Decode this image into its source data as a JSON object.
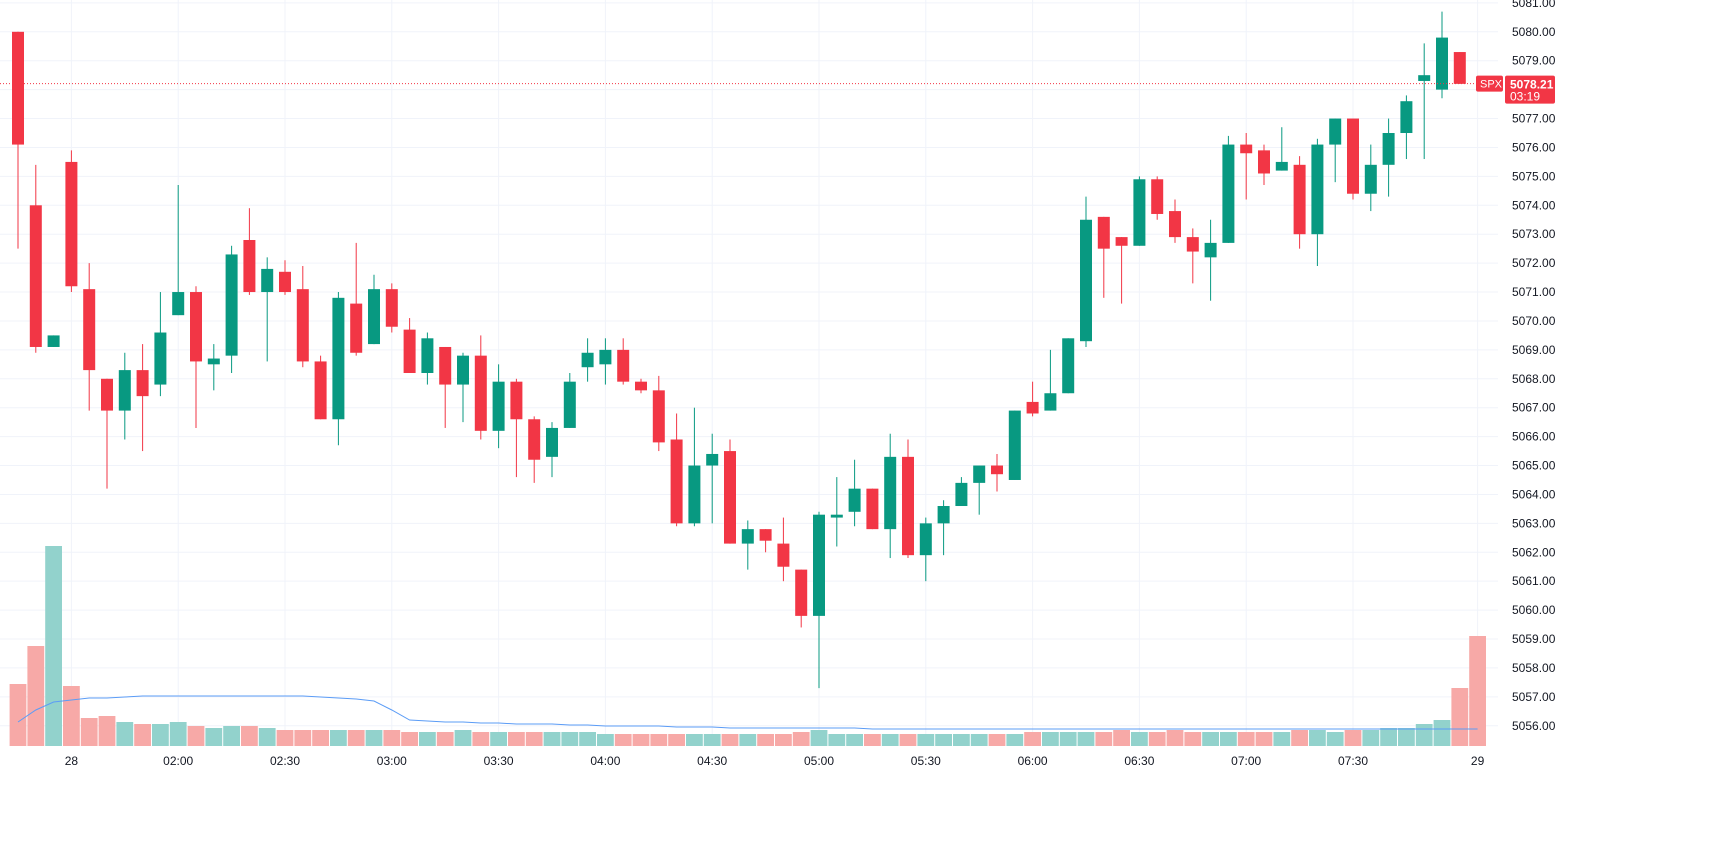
{
  "chart_data": {
    "type": "candlestick",
    "symbol": "SPX",
    "last_price": "5078.21",
    "countdown": "03:19",
    "y_range": [
      5055.3,
      5081.1
    ],
    "y_ticks": [
      "5081.00",
      "5080.00",
      "5079.00",
      "5078.00",
      "5077.00",
      "5076.00",
      "5075.00",
      "5074.00",
      "5073.00",
      "5072.00",
      "5071.00",
      "5070.00",
      "5069.00",
      "5068.00",
      "5067.00",
      "5066.00",
      "5065.00",
      "5064.00",
      "5063.00",
      "5062.00",
      "5061.00",
      "5060.00",
      "5059.00",
      "5058.00",
      "5057.00",
      "5056.00"
    ],
    "x_ticks": [
      {
        "label": "28",
        "bar": 3
      },
      {
        "label": "02:00",
        "bar": 9
      },
      {
        "label": "02:30",
        "bar": 15
      },
      {
        "label": "03:00",
        "bar": 21
      },
      {
        "label": "03:30",
        "bar": 27
      },
      {
        "label": "04:00",
        "bar": 33
      },
      {
        "label": "04:30",
        "bar": 39
      },
      {
        "label": "05:00",
        "bar": 45
      },
      {
        "label": "05:30",
        "bar": 51
      },
      {
        "label": "06:00",
        "bar": 57
      },
      {
        "label": "06:30",
        "bar": 63
      },
      {
        "label": "07:00",
        "bar": 69
      },
      {
        "label": "07:30",
        "bar": 75
      },
      {
        "label": "29",
        "bar": 82
      }
    ],
    "candles": [
      {
        "o": 5080.0,
        "h": 5080.0,
        "l": 5072.5,
        "c": 5076.1
      },
      {
        "o": 5074.0,
        "h": 5075.4,
        "l": 5068.9,
        "c": 5069.1
      },
      {
        "o": 5069.1,
        "h": 5069.5,
        "l": 5069.1,
        "c": 5069.5
      },
      {
        "o": 5075.5,
        "h": 5075.9,
        "l": 5071.0,
        "c": 5071.2
      },
      {
        "o": 5071.1,
        "h": 5072.0,
        "l": 5066.9,
        "c": 5068.3
      },
      {
        "o": 5068.0,
        "h": 5068.0,
        "l": 5064.2,
        "c": 5066.9
      },
      {
        "o": 5066.9,
        "h": 5068.9,
        "l": 5065.9,
        "c": 5068.3
      },
      {
        "o": 5068.3,
        "h": 5069.2,
        "l": 5065.5,
        "c": 5067.4
      },
      {
        "o": 5067.8,
        "h": 5071.0,
        "l": 5067.4,
        "c": 5069.6
      },
      {
        "o": 5070.2,
        "h": 5074.7,
        "l": 5070.2,
        "c": 5071.0
      },
      {
        "o": 5071.0,
        "h": 5071.2,
        "l": 5066.3,
        "c": 5068.6
      },
      {
        "o": 5068.5,
        "h": 5069.2,
        "l": 5067.6,
        "c": 5068.7
      },
      {
        "o": 5068.8,
        "h": 5072.6,
        "l": 5068.2,
        "c": 5072.3
      },
      {
        "o": 5072.8,
        "h": 5073.9,
        "l": 5070.9,
        "c": 5071.0
      },
      {
        "o": 5071.0,
        "h": 5072.2,
        "l": 5068.6,
        "c": 5071.8
      },
      {
        "o": 5071.7,
        "h": 5072.1,
        "l": 5070.9,
        "c": 5071.0
      },
      {
        "o": 5071.1,
        "h": 5071.9,
        "l": 5068.4,
        "c": 5068.6
      },
      {
        "o": 5068.6,
        "h": 5068.8,
        "l": 5066.6,
        "c": 5066.6
      },
      {
        "o": 5066.6,
        "h": 5071.0,
        "l": 5065.7,
        "c": 5070.8
      },
      {
        "o": 5070.6,
        "h": 5072.7,
        "l": 5068.8,
        "c": 5068.9
      },
      {
        "o": 5069.2,
        "h": 5071.6,
        "l": 5069.2,
        "c": 5071.1
      },
      {
        "o": 5071.1,
        "h": 5071.3,
        "l": 5069.6,
        "c": 5069.8
      },
      {
        "o": 5069.7,
        "h": 5070.1,
        "l": 5068.2,
        "c": 5068.2
      },
      {
        "o": 5068.2,
        "h": 5069.6,
        "l": 5067.8,
        "c": 5069.4
      },
      {
        "o": 5069.1,
        "h": 5069.1,
        "l": 5066.3,
        "c": 5067.8
      },
      {
        "o": 5067.8,
        "h": 5068.9,
        "l": 5066.5,
        "c": 5068.8
      },
      {
        "o": 5068.8,
        "h": 5069.5,
        "l": 5065.9,
        "c": 5066.2
      },
      {
        "o": 5066.2,
        "h": 5068.5,
        "l": 5065.6,
        "c": 5067.9
      },
      {
        "o": 5067.9,
        "h": 5068.0,
        "l": 5064.6,
        "c": 5066.6
      },
      {
        "o": 5066.6,
        "h": 5066.7,
        "l": 5064.4,
        "c": 5065.2
      },
      {
        "o": 5065.3,
        "h": 5066.5,
        "l": 5064.6,
        "c": 5066.3
      },
      {
        "o": 5066.3,
        "h": 5068.2,
        "l": 5066.3,
        "c": 5067.9
      },
      {
        "o": 5068.4,
        "h": 5069.4,
        "l": 5067.9,
        "c": 5068.9
      },
      {
        "o": 5068.5,
        "h": 5069.4,
        "l": 5067.8,
        "c": 5069.0
      },
      {
        "o": 5069.0,
        "h": 5069.4,
        "l": 5067.8,
        "c": 5067.9
      },
      {
        "o": 5067.9,
        "h": 5068.0,
        "l": 5067.5,
        "c": 5067.6
      },
      {
        "o": 5067.6,
        "h": 5068.1,
        "l": 5065.5,
        "c": 5065.8
      },
      {
        "o": 5065.9,
        "h": 5066.8,
        "l": 5062.9,
        "c": 5063.0
      },
      {
        "o": 5063.0,
        "h": 5067.0,
        "l": 5062.9,
        "c": 5065.0
      },
      {
        "o": 5065.0,
        "h": 5066.1,
        "l": 5063.0,
        "c": 5065.4
      },
      {
        "o": 5065.5,
        "h": 5065.9,
        "l": 5062.3,
        "c": 5062.3
      },
      {
        "o": 5062.3,
        "h": 5063.1,
        "l": 5061.4,
        "c": 5062.8
      },
      {
        "o": 5062.8,
        "h": 5062.8,
        "l": 5062.0,
        "c": 5062.4
      },
      {
        "o": 5062.3,
        "h": 5063.2,
        "l": 5061.0,
        "c": 5061.5
      },
      {
        "o": 5061.4,
        "h": 5061.4,
        "l": 5059.4,
        "c": 5059.8
      },
      {
        "o": 5059.8,
        "h": 5063.4,
        "l": 5057.3,
        "c": 5063.3
      },
      {
        "o": 5063.2,
        "h": 5064.6,
        "l": 5062.2,
        "c": 5063.3
      },
      {
        "o": 5063.4,
        "h": 5065.2,
        "l": 5062.9,
        "c": 5064.2
      },
      {
        "o": 5064.2,
        "h": 5064.2,
        "l": 5062.8,
        "c": 5062.8
      },
      {
        "o": 5062.8,
        "h": 5066.1,
        "l": 5061.8,
        "c": 5065.3
      },
      {
        "o": 5065.3,
        "h": 5065.9,
        "l": 5061.8,
        "c": 5061.9
      },
      {
        "o": 5061.9,
        "h": 5063.2,
        "l": 5061.0,
        "c": 5063.0
      },
      {
        "o": 5063.0,
        "h": 5063.8,
        "l": 5061.9,
        "c": 5063.6
      },
      {
        "o": 5063.6,
        "h": 5064.6,
        "l": 5063.6,
        "c": 5064.4
      },
      {
        "o": 5064.4,
        "h": 5065.0,
        "l": 5063.3,
        "c": 5065.0
      },
      {
        "o": 5065.0,
        "h": 5065.4,
        "l": 5064.1,
        "c": 5064.7
      },
      {
        "o": 5064.5,
        "h": 5066.9,
        "l": 5064.5,
        "c": 5066.9
      },
      {
        "o": 5067.2,
        "h": 5067.9,
        "l": 5066.7,
        "c": 5066.8
      },
      {
        "o": 5066.9,
        "h": 5069.0,
        "l": 5066.9,
        "c": 5067.5
      },
      {
        "o": 5067.5,
        "h": 5069.4,
        "l": 5067.5,
        "c": 5069.4
      },
      {
        "o": 5069.3,
        "h": 5074.3,
        "l": 5069.1,
        "c": 5073.5
      },
      {
        "o": 5073.6,
        "h": 5073.6,
        "l": 5070.8,
        "c": 5072.5
      },
      {
        "o": 5072.9,
        "h": 5072.9,
        "l": 5070.6,
        "c": 5072.6
      },
      {
        "o": 5072.6,
        "h": 5075.0,
        "l": 5072.6,
        "c": 5074.9
      },
      {
        "o": 5074.9,
        "h": 5075.0,
        "l": 5073.5,
        "c": 5073.7
      },
      {
        "o": 5073.8,
        "h": 5074.2,
        "l": 5072.7,
        "c": 5072.9
      },
      {
        "o": 5072.9,
        "h": 5073.2,
        "l": 5071.3,
        "c": 5072.4
      },
      {
        "o": 5072.2,
        "h": 5073.5,
        "l": 5070.7,
        "c": 5072.7
      },
      {
        "o": 5072.7,
        "h": 5076.4,
        "l": 5072.7,
        "c": 5076.1
      },
      {
        "o": 5076.1,
        "h": 5076.5,
        "l": 5074.2,
        "c": 5075.8
      },
      {
        "o": 5075.9,
        "h": 5076.1,
        "l": 5074.7,
        "c": 5075.1
      },
      {
        "o": 5075.2,
        "h": 5076.7,
        "l": 5075.2,
        "c": 5075.5
      },
      {
        "o": 5075.4,
        "h": 5075.7,
        "l": 5072.5,
        "c": 5073.0
      },
      {
        "o": 5073.0,
        "h": 5076.3,
        "l": 5071.9,
        "c": 5076.1
      },
      {
        "o": 5076.1,
        "h": 5077.0,
        "l": 5074.8,
        "c": 5077.0
      },
      {
        "o": 5077.0,
        "h": 5077.0,
        "l": 5074.2,
        "c": 5074.4
      },
      {
        "o": 5074.4,
        "h": 5076.1,
        "l": 5073.8,
        "c": 5075.4
      },
      {
        "o": 5075.4,
        "h": 5077.0,
        "l": 5074.3,
        "c": 5076.5
      },
      {
        "o": 5076.5,
        "h": 5077.8,
        "l": 5075.6,
        "c": 5077.6
      },
      {
        "o": 5078.3,
        "h": 5079.6,
        "l": 5075.6,
        "c": 5078.5
      },
      {
        "o": 5078.0,
        "h": 5080.7,
        "l": 5077.7,
        "c": 5079.8
      },
      {
        "o": 5079.3,
        "h": 5079.3,
        "l": 5078.2,
        "c": 5078.2
      }
    ],
    "volume": [
      0.31,
      0.5,
      1.0,
      0.3,
      0.14,
      0.15,
      0.12,
      0.11,
      0.11,
      0.12,
      0.1,
      0.09,
      0.1,
      0.1,
      0.09,
      0.08,
      0.08,
      0.08,
      0.08,
      0.08,
      0.08,
      0.08,
      0.07,
      0.07,
      0.07,
      0.08,
      0.07,
      0.07,
      0.07,
      0.07,
      0.07,
      0.07,
      0.07,
      0.06,
      0.06,
      0.06,
      0.06,
      0.06,
      0.06,
      0.06,
      0.06,
      0.06,
      0.06,
      0.06,
      0.07,
      0.08,
      0.06,
      0.06,
      0.06,
      0.06,
      0.06,
      0.06,
      0.06,
      0.06,
      0.06,
      0.06,
      0.06,
      0.07,
      0.07,
      0.07,
      0.07,
      0.07,
      0.08,
      0.07,
      0.07,
      0.08,
      0.07,
      0.07,
      0.07,
      0.07,
      0.07,
      0.07,
      0.08,
      0.08,
      0.07,
      0.08,
      0.08,
      0.09,
      0.09,
      0.11,
      0.13,
      0.29,
      0.55
    ],
    "volume_ma": [
      0.12,
      0.18,
      0.22,
      0.23,
      0.24,
      0.24,
      0.245,
      0.25,
      0.25,
      0.25,
      0.25,
      0.25,
      0.25,
      0.25,
      0.25,
      0.25,
      0.25,
      0.245,
      0.24,
      0.235,
      0.225,
      0.18,
      0.13,
      0.125,
      0.12,
      0.12,
      0.115,
      0.115,
      0.11,
      0.11,
      0.11,
      0.105,
      0.105,
      0.1,
      0.1,
      0.1,
      0.1,
      0.095,
      0.095,
      0.095,
      0.09,
      0.09,
      0.09,
      0.09,
      0.09,
      0.09,
      0.09,
      0.09,
      0.085,
      0.085,
      0.085,
      0.085,
      0.085,
      0.085,
      0.085,
      0.085,
      0.085,
      0.085,
      0.085,
      0.085,
      0.085,
      0.085,
      0.085,
      0.085,
      0.085,
      0.085,
      0.085,
      0.085,
      0.085,
      0.085,
      0.085,
      0.085,
      0.085,
      0.085,
      0.085,
      0.085,
      0.085,
      0.085,
      0.085,
      0.085,
      0.085,
      0.085,
      0.085
    ],
    "colors": {
      "up": "#089981",
      "down": "#f23645",
      "up_volume": "#92d2cc",
      "down_volume": "#f7a9a7",
      "volume_ma": "#5b9cf6",
      "grid": "#f0f3fa",
      "axis_text": "#131722"
    }
  }
}
